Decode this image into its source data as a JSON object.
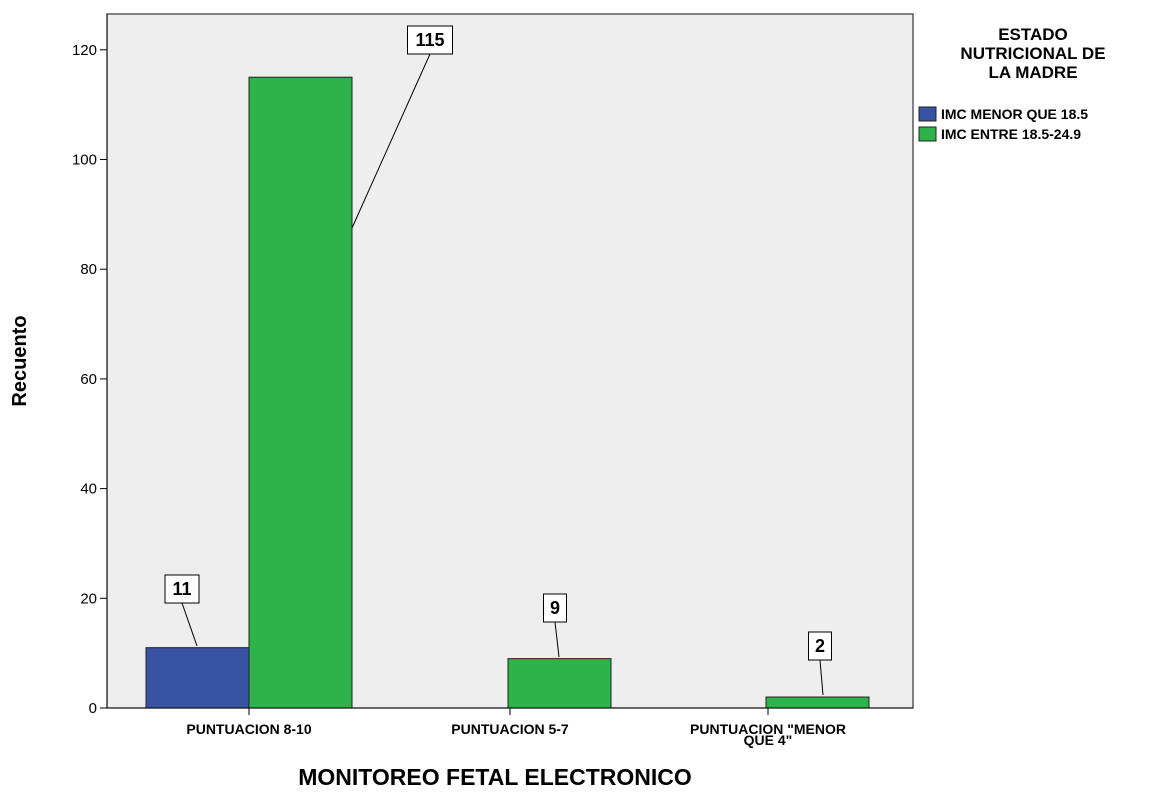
{
  "chart_data": {
    "type": "bar",
    "xlabel": "MONITOREO FETAL ELECTRONICO",
    "ylabel": "Recuento",
    "ylim": [
      0,
      125
    ],
    "yticks": [
      0,
      20,
      40,
      60,
      80,
      100,
      120
    ],
    "categories": [
      [
        "PUNTUACION 8-10"
      ],
      [
        "PUNTUACION 5-7"
      ],
      [
        "PUNTUACION \"MENOR",
        "QUE 4\""
      ]
    ],
    "series": [
      {
        "name": "IMC MENOR QUE 18.5",
        "color": "#3953a4",
        "values": [
          11,
          null,
          null
        ]
      },
      {
        "name": "IMC  ENTRE 18.5-24.9",
        "color": "#2db34a",
        "values": [
          115,
          9,
          2
        ]
      }
    ],
    "legend": {
      "title": [
        "ESTADO",
        "NUTRICIONAL DE",
        "LA MADRE"
      ],
      "placement": "right"
    },
    "plot_background": "#eeeeee",
    "grid": false
  }
}
